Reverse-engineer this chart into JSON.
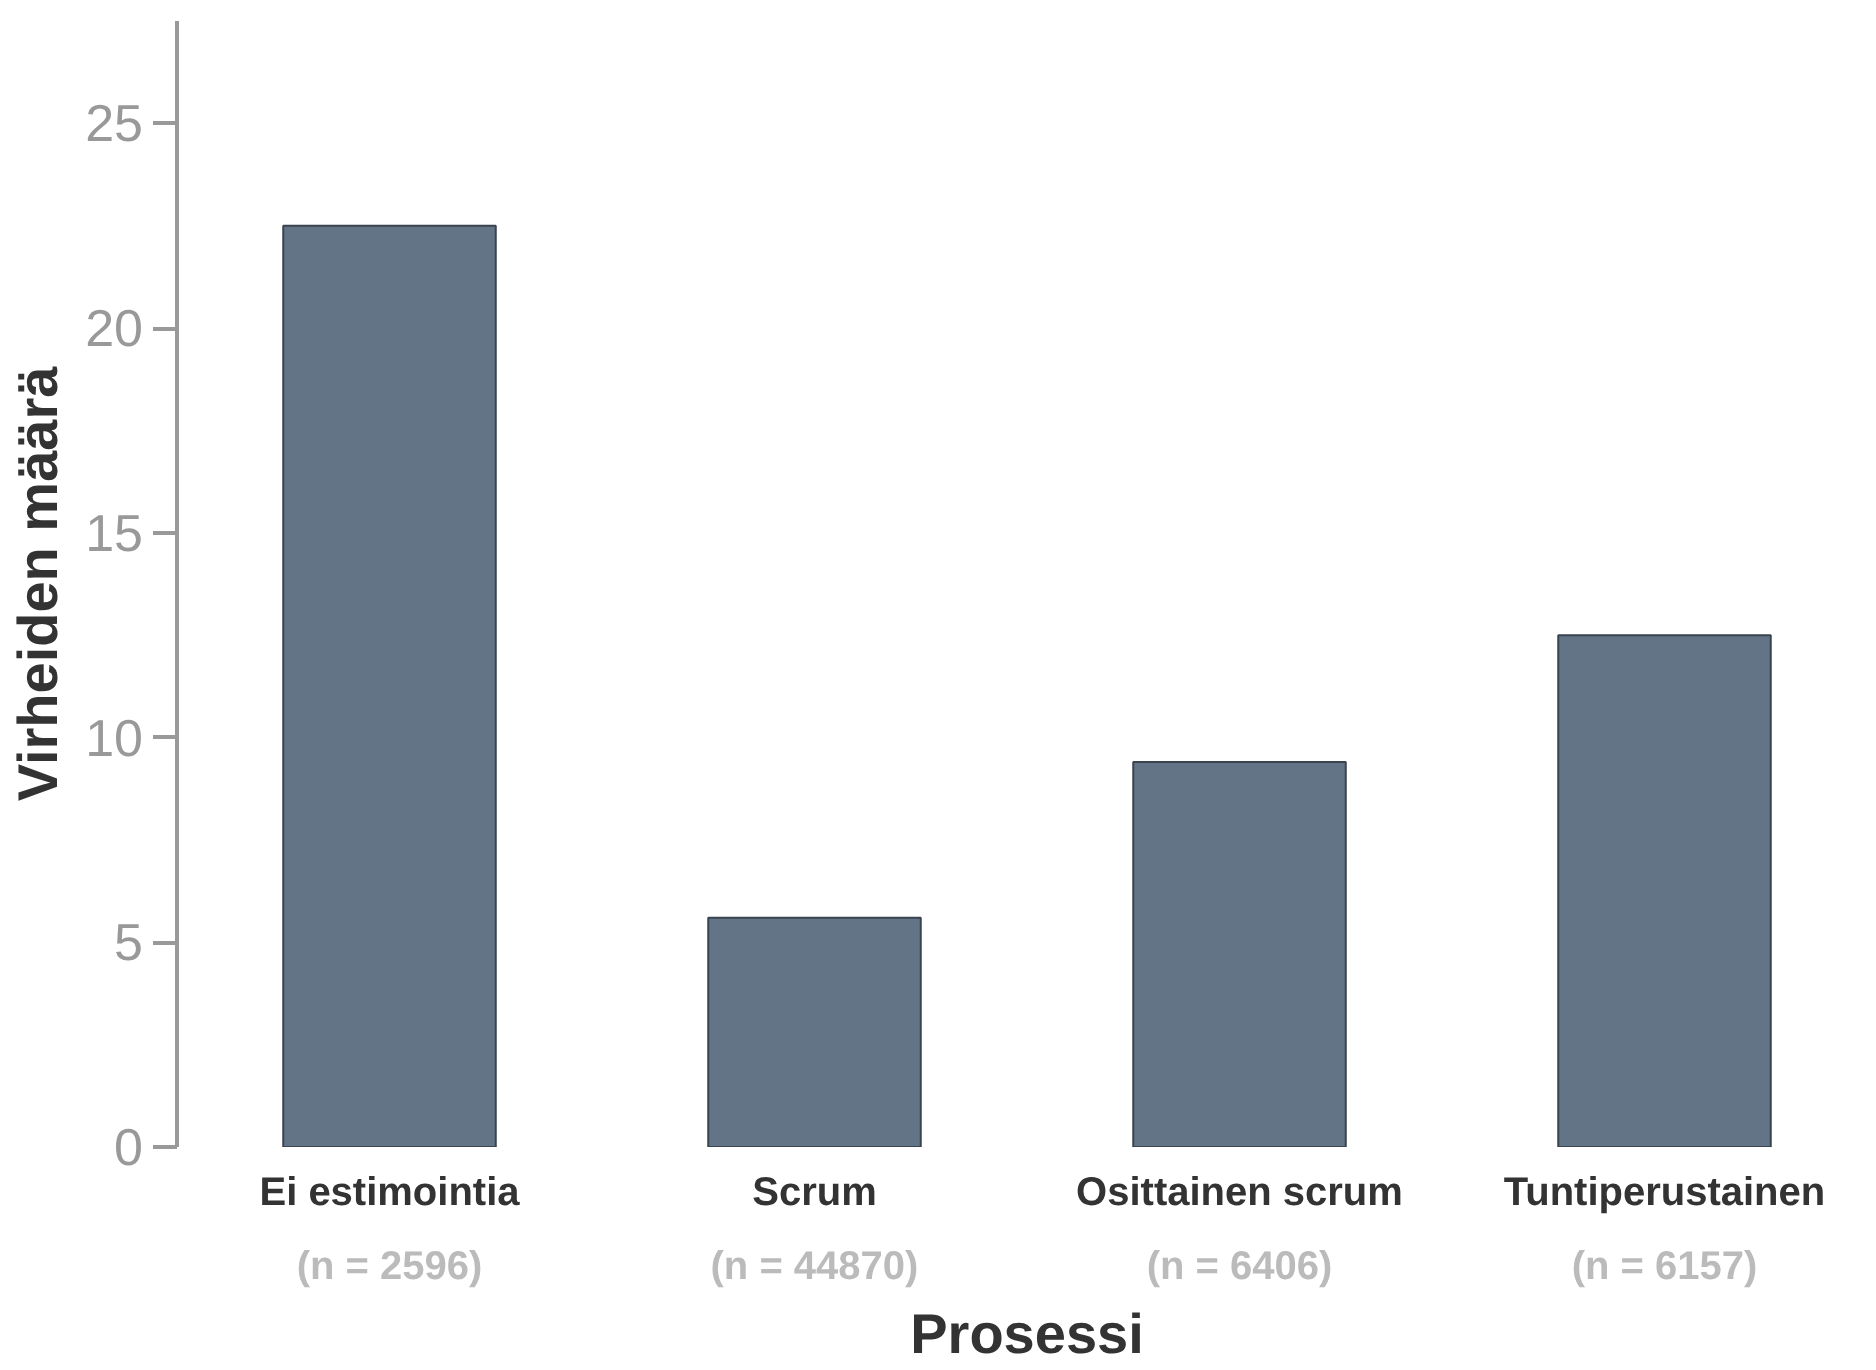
{
  "chart_data": {
    "type": "bar",
    "xlabel": "Prosessi",
    "ylabel": "Virheiden määrä",
    "categories": [
      "Ei estimointia\n(n = 2596)",
      "Scrum\n(n = 44870)",
      "Osittainen scrum\n(n = 6406)",
      "Tuntiperustainen\n(n = 6157)"
    ],
    "values": [
      22.5,
      5.6,
      9.4,
      12.5
    ],
    "color": "#647487",
    "ylim": [
      0,
      27.5
    ],
    "yticks": [
      0,
      5,
      10,
      15,
      20,
      25
    ]
  }
}
